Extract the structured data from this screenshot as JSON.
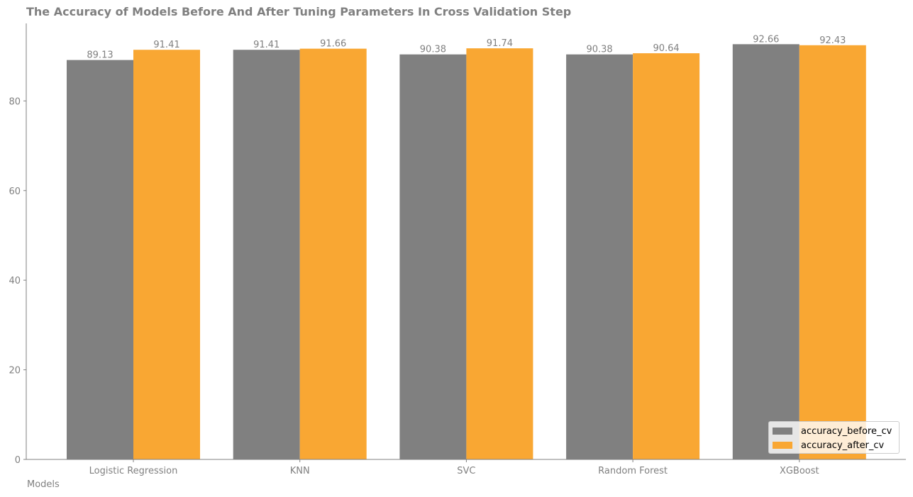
{
  "chart_data": {
    "type": "bar",
    "title": "The Accuracy of Models Before And After Tuning Parameters In Cross Validation Step",
    "xlabel": "Models",
    "ylabel": "",
    "categories": [
      "Logistic Regression",
      "KNN",
      "SVC",
      "Random Forest",
      "XGBoost"
    ],
    "series": [
      {
        "name": "accuracy_before_cv",
        "color": "#808080",
        "values": [
          89.13,
          91.41,
          90.38,
          90.38,
          92.66
        ],
        "labels": [
          "89.13",
          "91.41",
          "90.38",
          "90.38",
          "92.66"
        ]
      },
      {
        "name": "accuracy_after_cv",
        "color": "#f9a733",
        "values": [
          91.41,
          91.66,
          91.74,
          90.64,
          92.43
        ],
        "labels": [
          "91.41",
          "91.66",
          "91.74",
          "90.64",
          "92.43"
        ]
      }
    ],
    "ylim": [
      0,
      97.3
    ],
    "yticks": [
      0,
      20,
      40,
      60,
      80
    ],
    "grid": false,
    "legend_position": "lower-right"
  }
}
